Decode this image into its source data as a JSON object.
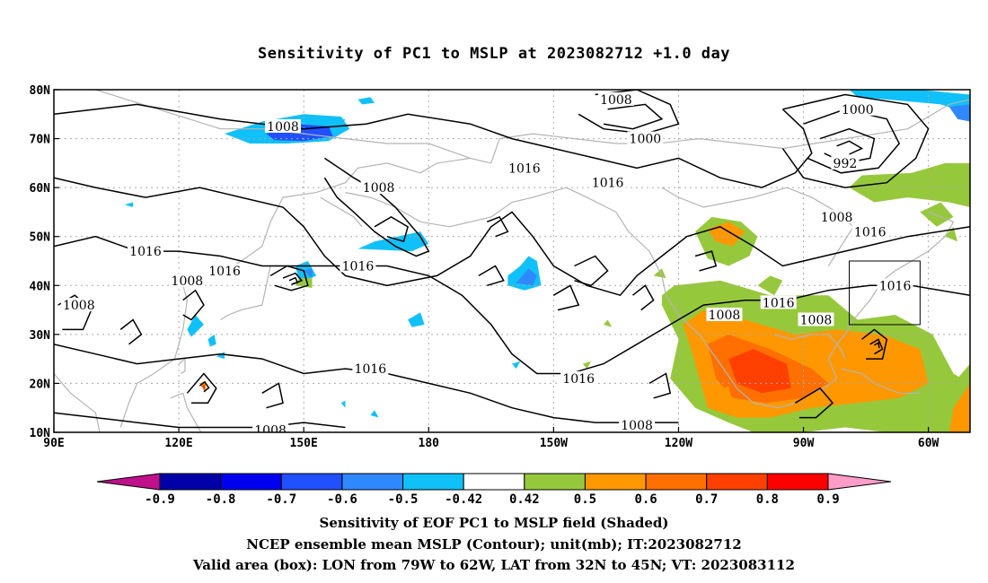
{
  "title": "Sensitivity of PC1 to MSLP at 2023082712 +1.0 day",
  "map": {
    "lat_ticks": [
      "80N",
      "70N",
      "60N",
      "50N",
      "40N",
      "30N",
      "20N",
      "10N"
    ],
    "lon_ticks": [
      "90E",
      "120E",
      "150E",
      "180",
      "150W",
      "120W",
      "90W",
      "60W"
    ],
    "lat_range": [
      10,
      80
    ],
    "lon_range_deg_east": [
      90,
      310
    ],
    "contour_labels": [
      {
        "text": "1008",
        "lon": 145,
        "lat": 72.5
      },
      {
        "text": "1008",
        "lon": 225,
        "lat": 78
      },
      {
        "text": "1000",
        "lon": 232,
        "lat": 70
      },
      {
        "text": "1000",
        "lon": 283,
        "lat": 76
      },
      {
        "text": "992",
        "lon": 280,
        "lat": 65
      },
      {
        "text": "1016",
        "lon": 203,
        "lat": 64
      },
      {
        "text": "1016",
        "lon": 223,
        "lat": 61
      },
      {
        "text": "1008",
        "lon": 168,
        "lat": 60
      },
      {
        "text": "1016",
        "lon": 112,
        "lat": 47
      },
      {
        "text": "1016",
        "lon": 131,
        "lat": 43
      },
      {
        "text": "1008",
        "lon": 122,
        "lat": 41
      },
      {
        "text": "1008",
        "lon": 96,
        "lat": 36
      },
      {
        "text": "1016",
        "lon": 163,
        "lat": 44
      },
      {
        "text": "1016",
        "lon": 166,
        "lat": 23
      },
      {
        "text": "1016",
        "lon": 216,
        "lat": 21
      },
      {
        "text": "1008",
        "lon": 230,
        "lat": 11.5
      },
      {
        "text": "1008",
        "lon": 251,
        "lat": 34
      },
      {
        "text": "1016",
        "lon": 264,
        "lat": 36.5
      },
      {
        "text": "1008",
        "lon": 273,
        "lat": 33
      },
      {
        "text": "1008",
        "lon": 278,
        "lat": 54
      },
      {
        "text": "1016",
        "lon": 286,
        "lat": 51
      },
      {
        "text": "1016",
        "lon": 292,
        "lat": 40
      },
      {
        "text": "1008",
        "lon": 142,
        "lat": 10.5
      }
    ],
    "valid_box": {
      "lon_min": 281,
      "lon_max": 298,
      "lat_min": 32,
      "lat_max": 45
    }
  },
  "colorbar": {
    "labels": [
      "-0.9",
      "-0.8",
      "-0.7",
      "-0.6",
      "-0.5",
      "-0.42",
      "0.42",
      "0.5",
      "0.6",
      "0.7",
      "0.8",
      "0.9"
    ],
    "colors": [
      "#0000a8",
      "#0000f0",
      "#2050ff",
      "#3088ff",
      "#10c0f8",
      "#ffffff",
      "#96c83c",
      "#ff9800",
      "#ff7000",
      "#ff4000",
      "#ff0000"
    ],
    "low_extend_color": "#c0108c",
    "high_extend_color": "#ff9cc8"
  },
  "captions": {
    "line1": "Sensitivity of EOF PC1 to MSLP field (Shaded)",
    "line2": "NCEP ensemble mean MSLP (Contour); unit(mb); IT:2023082712",
    "line3": "Valid area (box): LON from 79W to 62W, LAT from 32N to 45N; VT: 2023083112"
  }
}
